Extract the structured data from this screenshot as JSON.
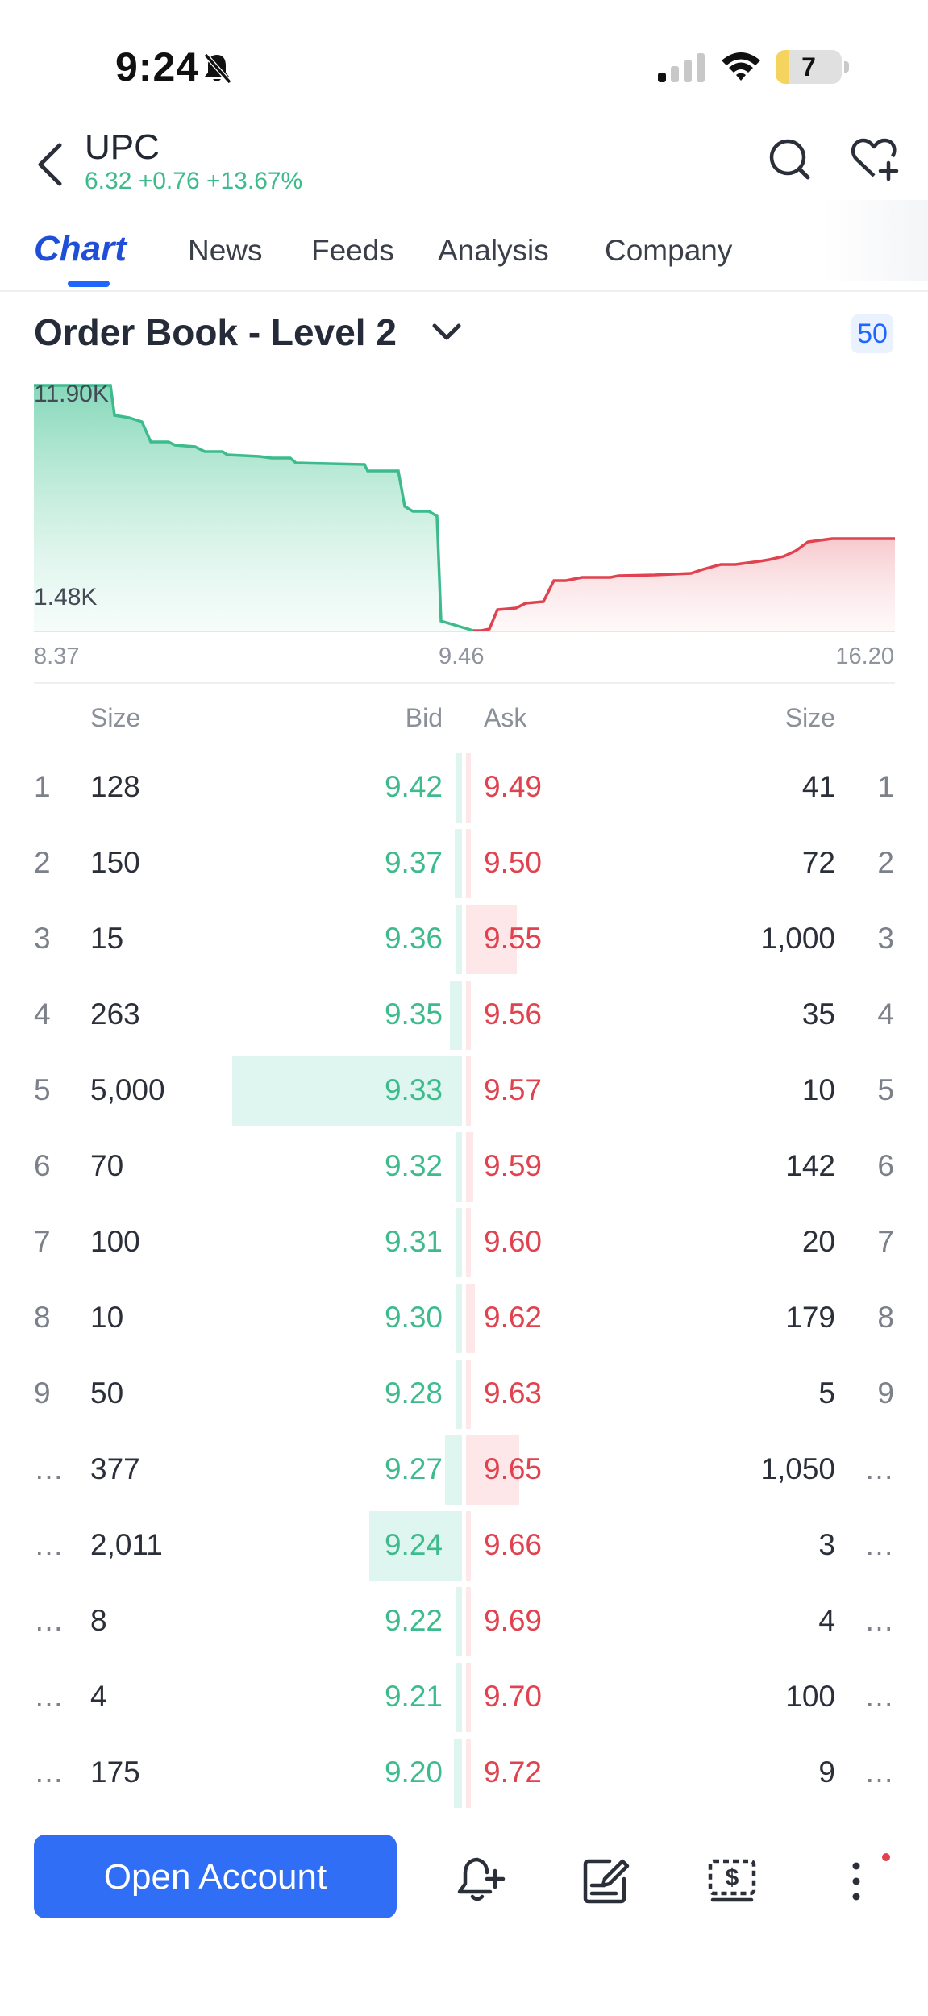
{
  "status_bar": {
    "time": "9:24",
    "battery": "7",
    "battery_level": 0.2
  },
  "header": {
    "symbol": "UPC",
    "quote": "6.32 +0.76 +13.67%"
  },
  "tabs": [
    {
      "label": "Chart",
      "active": true
    },
    {
      "label": "News"
    },
    {
      "label": "Feeds"
    },
    {
      "label": "Analysis"
    },
    {
      "label": "Company"
    }
  ],
  "order_book": {
    "title": "Order Book - Level 2",
    "depth_badge": "50",
    "depth_chart": {
      "y_max_label": "11.90K",
      "y_min_label": "1.48K",
      "x_left": "8.37",
      "x_mid": "9.46",
      "x_right": "16.20"
    },
    "columns": {
      "bid_size": "Size",
      "bid": "Bid",
      "ask": "Ask",
      "ask_size": "Size"
    },
    "rows": [
      {
        "idx": "1",
        "bid_size": "128",
        "bid": "9.42",
        "ask": "9.49",
        "ask_size": "41",
        "ridx": "1",
        "bid_vol": 128,
        "ask_vol": 41
      },
      {
        "idx": "2",
        "bid_size": "150",
        "bid": "9.37",
        "ask": "9.50",
        "ask_size": "72",
        "ridx": "2",
        "bid_vol": 150,
        "ask_vol": 72
      },
      {
        "idx": "3",
        "bid_size": "15",
        "bid": "9.36",
        "ask": "9.55",
        "ask_size": "1,000",
        "ridx": "3",
        "bid_vol": 15,
        "ask_vol": 1000
      },
      {
        "idx": "4",
        "bid_size": "263",
        "bid": "9.35",
        "ask": "9.56",
        "ask_size": "35",
        "ridx": "4",
        "bid_vol": 263,
        "ask_vol": 35
      },
      {
        "idx": "5",
        "bid_size": "5,000",
        "bid": "9.33",
        "ask": "9.57",
        "ask_size": "10",
        "ridx": "5",
        "bid_vol": 5000,
        "ask_vol": 10
      },
      {
        "idx": "6",
        "bid_size": "70",
        "bid": "9.32",
        "ask": "9.59",
        "ask_size": "142",
        "ridx": "6",
        "bid_vol": 70,
        "ask_vol": 142
      },
      {
        "idx": "7",
        "bid_size": "100",
        "bid": "9.31",
        "ask": "9.60",
        "ask_size": "20",
        "ridx": "7",
        "bid_vol": 100,
        "ask_vol": 20
      },
      {
        "idx": "8",
        "bid_size": "10",
        "bid": "9.30",
        "ask": "9.62",
        "ask_size": "179",
        "ridx": "8",
        "bid_vol": 10,
        "ask_vol": 179
      },
      {
        "idx": "9",
        "bid_size": "50",
        "bid": "9.28",
        "ask": "9.63",
        "ask_size": "5",
        "ridx": "9",
        "bid_vol": 50,
        "ask_vol": 5
      },
      {
        "idx": "…",
        "bid_size": "377",
        "bid": "9.27",
        "ask": "9.65",
        "ask_size": "1,050",
        "ridx": "…",
        "bid_vol": 377,
        "ask_vol": 1050
      },
      {
        "idx": "…",
        "bid_size": "2,011",
        "bid": "9.24",
        "ask": "9.66",
        "ask_size": "3",
        "ridx": "…",
        "bid_vol": 2011,
        "ask_vol": 3
      },
      {
        "idx": "…",
        "bid_size": "8",
        "bid": "9.22",
        "ask": "9.69",
        "ask_size": "4",
        "ridx": "…",
        "bid_vol": 8,
        "ask_vol": 4
      },
      {
        "idx": "…",
        "bid_size": "4",
        "bid": "9.21",
        "ask": "9.70",
        "ask_size": "100",
        "ridx": "…",
        "bid_vol": 4,
        "ask_vol": 100
      },
      {
        "idx": "…",
        "bid_size": "175",
        "bid": "9.20",
        "ask": "9.72",
        "ask_size": "9",
        "ridx": "…",
        "bid_vol": 175,
        "ask_vol": 9
      }
    ]
  },
  "bottom_bar": {
    "open_account": "Open Account",
    "icons": [
      "alert-add-icon",
      "edit-note-icon",
      "trade-icon",
      "more-icon"
    ]
  },
  "colors": {
    "bid": "#3dbb8d",
    "ask": "#e0424f",
    "accent": "#2f6ef5"
  }
}
